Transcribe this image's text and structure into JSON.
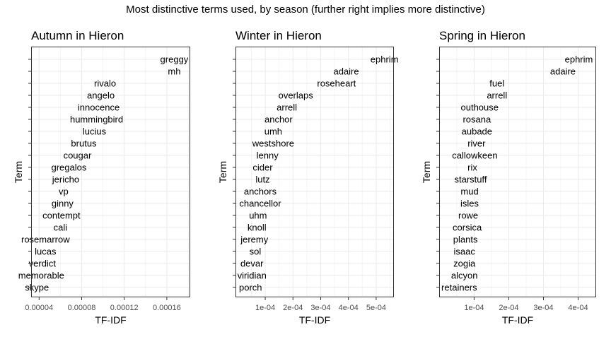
{
  "suptitle": "Most distinctive terms used, by season (further right implies more distinctive)",
  "chart_data": [
    {
      "type": "scatter",
      "title": "Autumn in Hieron",
      "xlabel": "TF-IDF",
      "ylabel": "Term",
      "xlim": [
        3.25e-05,
        0.000182
      ],
      "xticks": [
        4e-05,
        8e-05,
        0.00012,
        0.00016
      ],
      "xtick_labels": [
        "0.00004",
        "0.00008",
        "0.00012",
        "0.00016"
      ],
      "grid": true,
      "points": [
        {
          "term": "greggy",
          "x": 0.000167
        },
        {
          "term": "mh",
          "x": 0.000167
        },
        {
          "term": "rivalo",
          "x": 0.000102
        },
        {
          "term": "angelo",
          "x": 9.8e-05
        },
        {
          "term": "innocence",
          "x": 9.6e-05
        },
        {
          "term": "hummingbird",
          "x": 9.4e-05
        },
        {
          "term": "lucius",
          "x": 9.2e-05
        },
        {
          "term": "brutus",
          "x": 8.2e-05
        },
        {
          "term": "cougar",
          "x": 7.6e-05
        },
        {
          "term": "gregalos",
          "x": 6.8e-05
        },
        {
          "term": "jericho",
          "x": 6.5e-05
        },
        {
          "term": "vp",
          "x": 6.3e-05
        },
        {
          "term": "ginny",
          "x": 6.2e-05
        },
        {
          "term": "contempt",
          "x": 6.1e-05
        },
        {
          "term": "cali",
          "x": 6e-05
        },
        {
          "term": "rosemarrow",
          "x": 4.6e-05
        },
        {
          "term": "lucas",
          "x": 4.6e-05
        },
        {
          "term": "verdict",
          "x": 4.3e-05
        },
        {
          "term": "memorable",
          "x": 4.2e-05
        },
        {
          "term": "skype",
          "x": 3.8e-05
        }
      ]
    },
    {
      "type": "scatter",
      "title": "Winter in Hieron",
      "xlabel": "TF-IDF",
      "ylabel": "Term",
      "xlim": [
        -7.2e-06,
        0.000564
      ],
      "xticks": [
        0.0001,
        0.0002,
        0.0003,
        0.0004,
        0.0005
      ],
      "xtick_labels": [
        "1e-04",
        "2e-04",
        "3e-04",
        "4e-04",
        "5e-04"
      ],
      "grid": true,
      "points": [
        {
          "term": "ephrim",
          "x": 0.00053
        },
        {
          "term": "adaire",
          "x": 0.000392
        },
        {
          "term": "roseheart",
          "x": 0.000357
        },
        {
          "term": "overlaps",
          "x": 0.00021
        },
        {
          "term": "arrell",
          "x": 0.000178
        },
        {
          "term": "anchor",
          "x": 0.000148
        },
        {
          "term": "umh",
          "x": 0.000129
        },
        {
          "term": "westshore",
          "x": 0.000129
        },
        {
          "term": "lenny",
          "x": 0.000108
        },
        {
          "term": "cider",
          "x": 9.1e-05
        },
        {
          "term": "lutz",
          "x": 9.1e-05
        },
        {
          "term": "anchors",
          "x": 8.2e-05
        },
        {
          "term": "chancellor",
          "x": 8.2e-05
        },
        {
          "term": "uhm",
          "x": 7.4e-05
        },
        {
          "term": "knoll",
          "x": 7e-05
        },
        {
          "term": "jeremy",
          "x": 6.1e-05
        },
        {
          "term": "sol",
          "x": 6.4e-05
        },
        {
          "term": "devar",
          "x": 5.2e-05
        },
        {
          "term": "viridian",
          "x": 5.2e-05
        },
        {
          "term": "porch",
          "x": 4.7e-05
        }
      ]
    },
    {
      "type": "scatter",
      "title": "Spring in Hieron",
      "xlabel": "TF-IDF",
      "ylabel": "Term",
      "xlim": [
        -8e-07,
        0.000452
      ],
      "xticks": [
        0.0001,
        0.0002,
        0.0003,
        0.0004
      ],
      "xtick_labels": [
        "1e-04",
        "2e-04",
        "3e-04",
        "4e-04"
      ],
      "grid": true,
      "points": [
        {
          "term": "ephrim",
          "x": 0.000402
        },
        {
          "term": "adaire",
          "x": 0.000356
        },
        {
          "term": "fuel",
          "x": 0.000166
        },
        {
          "term": "arrell",
          "x": 0.000166
        },
        {
          "term": "outhouse",
          "x": 0.000116
        },
        {
          "term": "rosana",
          "x": 0.000108
        },
        {
          "term": "aubade",
          "x": 0.000108
        },
        {
          "term": "river",
          "x": 0.000107
        },
        {
          "term": "callowkeen",
          "x": 0.000102
        },
        {
          "term": "rix",
          "x": 9.5e-05
        },
        {
          "term": "starstuff",
          "x": 9e-05
        },
        {
          "term": "mud",
          "x": 8.7e-05
        },
        {
          "term": "isles",
          "x": 8.7e-05
        },
        {
          "term": "rowe",
          "x": 8.3e-05
        },
        {
          "term": "corsica",
          "x": 8e-05
        },
        {
          "term": "plants",
          "x": 7.5e-05
        },
        {
          "term": "isaac",
          "x": 7.2e-05
        },
        {
          "term": "zogia",
          "x": 7.2e-05
        },
        {
          "term": "alcyon",
          "x": 7.2e-05
        },
        {
          "term": "retainers",
          "x": 5.7e-05
        }
      ]
    }
  ]
}
